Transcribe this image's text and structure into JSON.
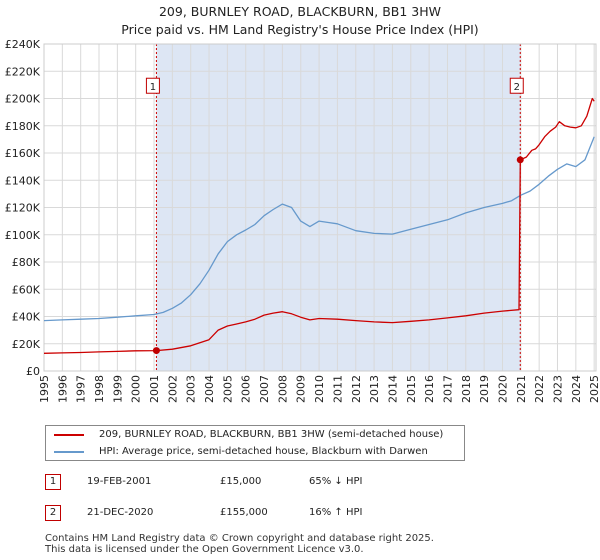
{
  "title_line1": "209, BURNLEY ROAD, BLACKBURN, BB1 3HW",
  "title_line2": "Price paid vs. HM Land Registry's House Price Index (HPI)",
  "colors": {
    "price": "#cc0000",
    "hpi": "#6699cc",
    "band": "#dde6f4",
    "marker": "#c00000"
  },
  "legend": {
    "price_label": "209, BURNLEY ROAD, BLACKBURN, BB1 3HW (semi-detached house)",
    "hpi_label": "HPI: Average price, semi-detached house, Blackburn with Darwen"
  },
  "transactions": [
    {
      "id": "1",
      "date": "19-FEB-2001",
      "price": "£15,000",
      "hpi_rel": "65% ↓ HPI"
    },
    {
      "id": "2",
      "date": "21-DEC-2020",
      "price": "£155,000",
      "hpi_rel": "16% ↑ HPI"
    }
  ],
  "footer_line1": "Contains HM Land Registry data © Crown copyright and database right 2025.",
  "footer_line2": "This data is licensed under the Open Government Licence v3.0.",
  "chart_data": {
    "type": "line",
    "xlabel": "",
    "ylabel": "",
    "xlim": [
      1995,
      2025.1
    ],
    "ylim": [
      0,
      240000
    ],
    "yticks": [
      0,
      20000,
      40000,
      60000,
      80000,
      100000,
      120000,
      140000,
      160000,
      180000,
      200000,
      220000,
      240000
    ],
    "ytick_labels": [
      "£0",
      "£20K",
      "£40K",
      "£60K",
      "£80K",
      "£100K",
      "£120K",
      "£140K",
      "£160K",
      "£180K",
      "£200K",
      "£220K",
      "£240K"
    ],
    "xticks": [
      1995,
      1996,
      1997,
      1998,
      1999,
      2000,
      2001,
      2002,
      2003,
      2004,
      2005,
      2006,
      2007,
      2008,
      2009,
      2010,
      2011,
      2012,
      2013,
      2014,
      2015,
      2016,
      2017,
      2018,
      2019,
      2020,
      2021,
      2022,
      2023,
      2024,
      2025
    ],
    "xtick_labels": [
      "1995",
      "1996",
      "1997",
      "1998",
      "1999",
      "2000",
      "2001",
      "2002",
      "2003",
      "2004",
      "2005",
      "2006",
      "2007",
      "2008",
      "2009",
      "2010",
      "2011",
      "2012",
      "2013",
      "2014",
      "2015",
      "2016",
      "2017",
      "2018",
      "2019",
      "2020",
      "2021",
      "2022",
      "2023",
      "2024",
      "2025"
    ],
    "grid": true,
    "shaded_region": [
      2001.13,
      2020.97
    ],
    "vlines": [
      2001.13,
      2020.97
    ],
    "annotations": [
      {
        "label": "1",
        "x": 2001.13,
        "y": 209000
      },
      {
        "label": "2",
        "x": 2020.97,
        "y": 209000
      }
    ],
    "sale_points": [
      {
        "x": 2001.13,
        "y": 15000
      },
      {
        "x": 2020.97,
        "y": 155000
      }
    ],
    "series": [
      {
        "name": "209, BURNLEY ROAD, BLACKBURN, BB1 3HW (semi-detached house)",
        "color": "#cc0000",
        "x": [
          1995,
          1996,
          1997,
          1998,
          1999,
          2000,
          2001.13,
          2002,
          2003,
          2004,
          2004.5,
          2005,
          2005.5,
          2006,
          2006.5,
          2007,
          2007.5,
          2008,
          2008.5,
          2009,
          2009.5,
          2010,
          2011,
          2012,
          2013,
          2014,
          2015,
          2016,
          2017,
          2018,
          2019,
          2020,
          2020.9,
          2020.97,
          2021.3,
          2021.6,
          2021.8,
          2022,
          2022.3,
          2022.6,
          2022.9,
          2023.1,
          2023.4,
          2023.7,
          2024,
          2024.3,
          2024.6,
          2024.9,
          2025
        ],
        "y": [
          13000,
          13300,
          13600,
          14000,
          14400,
          14800,
          15000,
          16000,
          18500,
          23000,
          30000,
          33000,
          34500,
          36000,
          38000,
          41000,
          42500,
          43500,
          42000,
          39500,
          37500,
          38500,
          38000,
          37000,
          36000,
          35500,
          36500,
          37500,
          39000,
          40500,
          42500,
          44000,
          45000,
          155000,
          157000,
          162000,
          163000,
          166000,
          172000,
          176000,
          179000,
          183000,
          180000,
          179000,
          178500,
          180000,
          187000,
          200000,
          198000
        ]
      },
      {
        "name": "HPI: Average price, semi-detached house, Blackburn with Darwen",
        "color": "#6699cc",
        "x": [
          1995,
          1996,
          1997,
          1998,
          1999,
          2000,
          2001,
          2001.5,
          2002,
          2002.5,
          2003,
          2003.5,
          2004,
          2004.5,
          2005,
          2005.5,
          2006,
          2006.5,
          2007,
          2007.5,
          2008,
          2008.5,
          2009,
          2009.5,
          2010,
          2010.5,
          2011,
          2012,
          2013,
          2014,
          2015,
          2016,
          2017,
          2018,
          2019,
          2020,
          2020.5,
          2021,
          2021.5,
          2022,
          2022.5,
          2023,
          2023.5,
          2024,
          2024.5,
          2025
        ],
        "y": [
          37000,
          37500,
          38000,
          38500,
          39500,
          40500,
          41500,
          43000,
          46000,
          50000,
          56000,
          64000,
          74000,
          86000,
          95000,
          100000,
          103500,
          107500,
          114000,
          118500,
          122500,
          120000,
          110000,
          106000,
          110000,
          109000,
          108000,
          103000,
          101000,
          100500,
          104000,
          107500,
          111000,
          116000,
          120000,
          123000,
          125000,
          129000,
          132000,
          137000,
          143000,
          148000,
          152000,
          150000,
          155000,
          172000
        ]
      }
    ]
  }
}
